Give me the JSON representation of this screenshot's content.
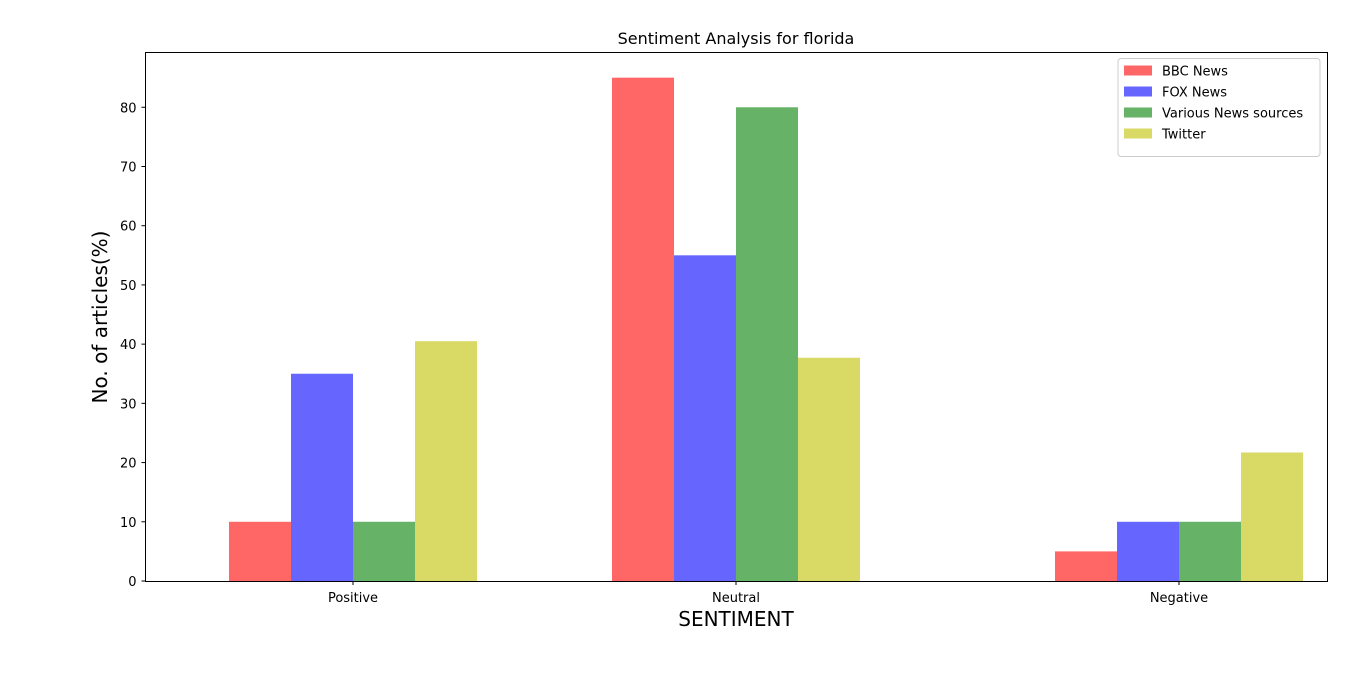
{
  "chart_data": {
    "type": "bar",
    "title": "Sentiment Analysis for florida",
    "xlabel": "SENTIMENT",
    "ylabel": "No. of articles(%)",
    "categories": [
      "Positive",
      "Neutral",
      "Negative"
    ],
    "series": [
      {
        "name": "BBC News",
        "color": "#ff6666",
        "values": [
          10,
          85,
          5
        ]
      },
      {
        "name": "FOX News",
        "color": "#6666ff",
        "values": [
          35,
          55,
          10
        ]
      },
      {
        "name": "Various News sources",
        "color": "#66b266",
        "values": [
          10,
          80,
          10
        ]
      },
      {
        "name": "Twitter",
        "color": "#d9d966",
        "values": [
          40.5,
          37.7,
          21.7
        ]
      }
    ],
    "ylim": [
      0,
      89.25
    ],
    "yticks": [
      0,
      10,
      20,
      30,
      40,
      50,
      60,
      70,
      80
    ],
    "grid": false,
    "legend_position": "top-right"
  }
}
